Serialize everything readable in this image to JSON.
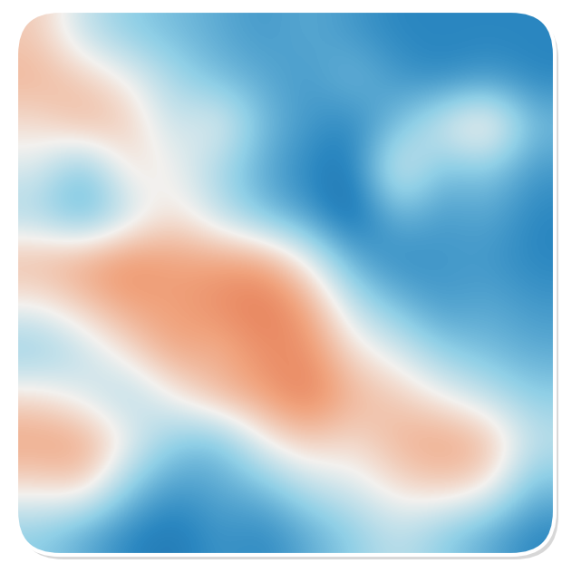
{
  "chart_data": {
    "type": "heatmap",
    "tick_labels": false,
    "clim": [
      -1,
      1
    ],
    "cells": [
      [
        0.4,
        0.0,
        -0.2,
        -0.3,
        -0.4,
        -0.5,
        -0.4,
        -0.5,
        -0.6,
        -0.6,
        -0.6,
        -0.6
      ],
      [
        0.5,
        0.4,
        0.2,
        -0.1,
        -0.3,
        -0.4,
        -0.5,
        -0.3,
        -0.5,
        -0.6,
        -0.5,
        -0.6
      ],
      [
        0.3,
        0.5,
        0.4,
        0.0,
        0.2,
        -0.3,
        -0.5,
        -0.6,
        -0.3,
        0.1,
        0.4,
        -0.3
      ],
      [
        0.1,
        -0.3,
        0.3,
        0.2,
        -0.1,
        -0.4,
        -0.6,
        -0.7,
        0.2,
        -0.3,
        -0.2,
        -0.5
      ],
      [
        -0.1,
        -0.4,
        0.0,
        0.3,
        0.0,
        -0.3,
        -0.5,
        -0.8,
        -0.3,
        -0.5,
        -0.4,
        -0.6
      ],
      [
        0.5,
        0.6,
        0.7,
        0.6,
        0.6,
        0.6,
        0.2,
        -0.4,
        -0.6,
        -0.5,
        -0.5,
        -0.6
      ],
      [
        0.2,
        0.4,
        0.6,
        0.6,
        0.7,
        0.8,
        0.6,
        0.0,
        -0.3,
        -0.5,
        -0.4,
        -0.5
      ],
      [
        -0.2,
        0.0,
        0.3,
        0.6,
        0.5,
        0.7,
        0.7,
        0.3,
        0.1,
        -0.2,
        -0.3,
        -0.4
      ],
      [
        0.3,
        0.1,
        -0.1,
        0.2,
        0.5,
        0.6,
        0.8,
        0.5,
        0.4,
        0.2,
        0.0,
        -0.2
      ],
      [
        0.6,
        0.6,
        0.2,
        -0.2,
        -0.3,
        0.2,
        0.4,
        0.3,
        0.5,
        0.6,
        0.5,
        0.0
      ],
      [
        0.3,
        0.4,
        -0.2,
        -0.5,
        -0.4,
        -0.3,
        0.0,
        0.1,
        0.3,
        0.4,
        0.3,
        -0.3
      ],
      [
        -0.2,
        -0.4,
        -0.6,
        -0.7,
        -0.5,
        -0.6,
        -0.4,
        -0.2,
        0.0,
        -0.2,
        -0.4,
        -0.6
      ]
    ]
  }
}
